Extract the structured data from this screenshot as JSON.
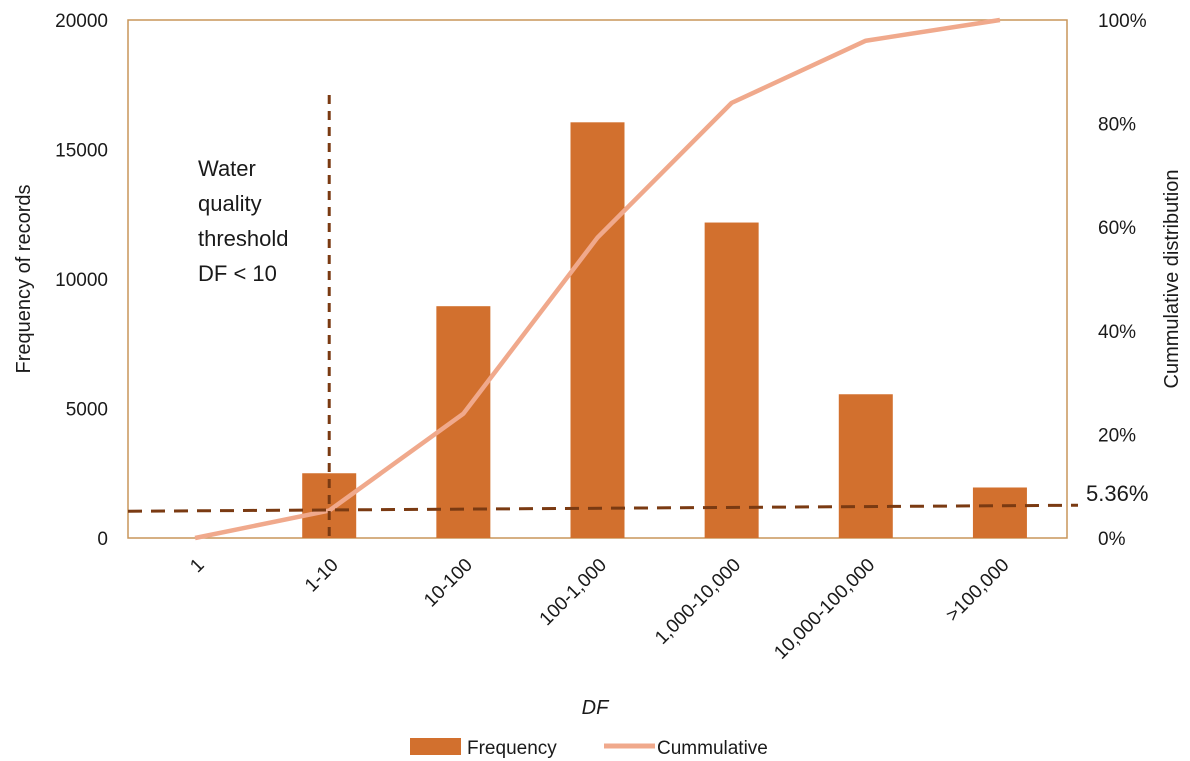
{
  "chart_data": {
    "type": "bar",
    "title": "",
    "xlabel": "DF",
    "ylabel": "Frequency of records",
    "y2label": "Cummulative distribution",
    "categories": [
      "1",
      "1-10",
      "10-100",
      "100-1,000",
      "1,000-10,000",
      "10,000-100,000",
      ">100,000"
    ],
    "ylim": [
      0,
      20000
    ],
    "yticks": [
      "0",
      "5000",
      "10000",
      "15000",
      "20000"
    ],
    "y2lim": [
      0,
      1
    ],
    "y2ticks": [
      "0%",
      "20%",
      "40%",
      "60%",
      "80%",
      "100%"
    ],
    "series": [
      {
        "name": "Frequency",
        "type": "bar",
        "axis": "left",
        "color": "#d2702e",
        "values": [
          0,
          2500,
          8950,
          16050,
          12180,
          5550,
          1950
        ]
      },
      {
        "name": "Cummulative",
        "type": "line",
        "axis": "right",
        "color": "#f0a98c",
        "values": [
          0.0,
          0.053,
          0.24,
          0.58,
          0.84,
          0.96,
          1.0
        ]
      }
    ],
    "legend": {
      "position": "bottom",
      "items": [
        "Frequency",
        "Cummulative"
      ]
    },
    "grid": false,
    "annotations": {
      "threshold_text": [
        "Water",
        "quality",
        "threshold",
        "DF <  10"
      ],
      "vline_category": "1-10",
      "hline_value": 0.0536,
      "hline_label": "5.36%",
      "ref_line_color": "#7a3a12"
    },
    "frame_color": "#c8965a"
  }
}
